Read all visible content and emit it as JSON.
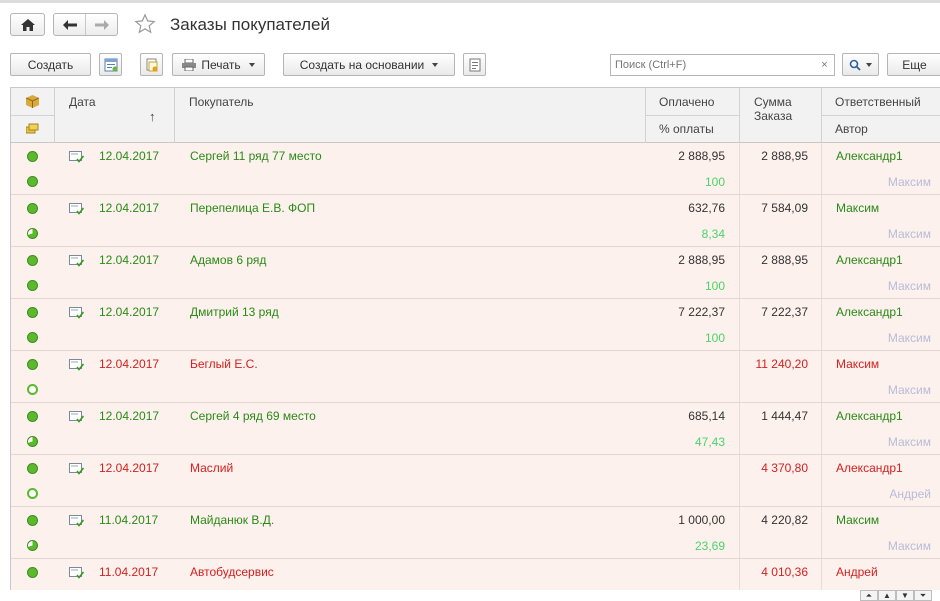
{
  "header": {
    "title": "Заказы покупателей"
  },
  "toolbar": {
    "create_label": "Создать",
    "print_label": "Печать",
    "create_based_label": "Создать на основании",
    "search_placeholder": "Поиск (Ctrl+F)",
    "search_clear": "×",
    "more_label": "Еще"
  },
  "columns": {
    "date": "Дата",
    "sort_arrow": "↑",
    "customer": "Покупатель",
    "paid": "Оплачено",
    "paid_percent": "% оплаты",
    "order_sum": "Сумма Заказа",
    "responsible": "Ответственный",
    "author": "Автор"
  },
  "rows": [
    {
      "status": "full",
      "payment": "full",
      "date": "12.04.2017",
      "customer": "Сергей 11 ряд 77 место",
      "paid": "2 888,95",
      "paid_percent": "100",
      "sum": "2 888,95",
      "responsible": "Александр1",
      "author": "Максим",
      "color": "green"
    },
    {
      "status": "full",
      "payment": "partial",
      "date": "12.04.2017",
      "customer": "Перепелица Е.В. ФОП",
      "paid": "632,76",
      "paid_percent": "8,34",
      "sum": "7 584,09",
      "responsible": "Максим",
      "author": "Максим",
      "color": "green"
    },
    {
      "status": "full",
      "payment": "full",
      "date": "12.04.2017",
      "customer": "Адамов 6 ряд",
      "paid": "2 888,95",
      "paid_percent": "100",
      "sum": "2 888,95",
      "responsible": "Александр1",
      "author": "Максим",
      "color": "green"
    },
    {
      "status": "full",
      "payment": "full",
      "date": "12.04.2017",
      "customer": "Дмитрий 13 ряд",
      "paid": "7 222,37",
      "paid_percent": "100",
      "sum": "7 222,37",
      "responsible": "Александр1",
      "author": "Максим",
      "color": "green"
    },
    {
      "status": "full",
      "payment": "none",
      "date": "12.04.2017",
      "customer": "Беглый Е.С.",
      "paid": "",
      "paid_percent": "",
      "sum": "11 240,20",
      "responsible": "Максим",
      "author": "Максим",
      "color": "red"
    },
    {
      "status": "full",
      "payment": "partial",
      "date": "12.04.2017",
      "customer": "Сергей 4 ряд 69 место",
      "paid": "685,14",
      "paid_percent": "47,43",
      "sum": "1 444,47",
      "responsible": "Александр1",
      "author": "Максим",
      "color": "green"
    },
    {
      "status": "full",
      "payment": "none",
      "date": "12.04.2017",
      "customer": "Маслий",
      "paid": "",
      "paid_percent": "",
      "sum": "4 370,80",
      "responsible": "Александр1",
      "author": "Андрей",
      "color": "red"
    },
    {
      "status": "full",
      "payment": "partial",
      "date": "11.04.2017",
      "customer": "Майданюк В.Д.",
      "paid": "1 000,00",
      "paid_percent": "23,69",
      "sum": "4 220,82",
      "responsible": "Максим",
      "author": "Максим",
      "color": "green"
    },
    {
      "status": "full",
      "payment": "none",
      "date": "11.04.2017",
      "customer": "Автобудсервис",
      "paid": "",
      "paid_percent": "",
      "sum": "4 010,36",
      "responsible": "Андрей",
      "author": "",
      "color": "red"
    }
  ],
  "colors": {
    "row_background": "#fcf1ec",
    "green_text": "#2b8a18",
    "red_text": "#d32020",
    "percent_text": "#4cd36a",
    "author_text": "#b8bcd8",
    "status_green": "#5cb82e"
  },
  "icons": {
    "home": "home-icon",
    "back": "arrow-left-icon",
    "forward": "arrow-right-icon",
    "favorite": "star-icon",
    "list_settings": "list-settings-icon",
    "copy_doc": "document-copy-icon",
    "printer": "printer-icon",
    "report": "report-icon",
    "search": "search-icon"
  }
}
